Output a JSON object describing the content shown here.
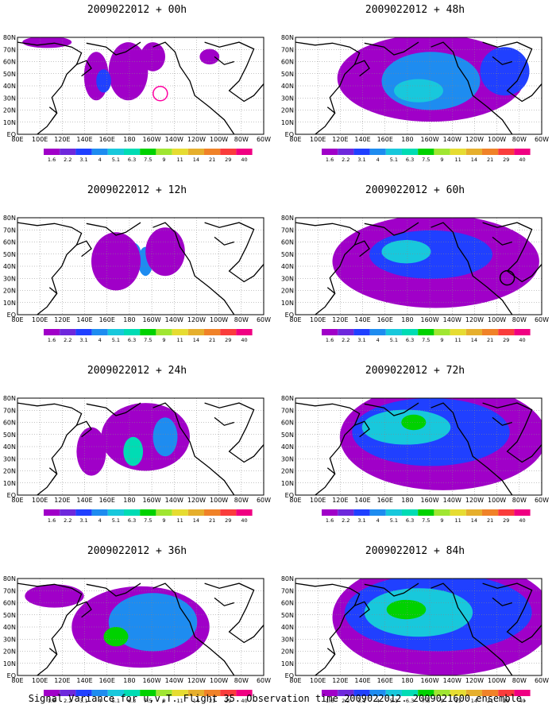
{
  "panels": [
    {
      "title": "2009022012 + 00h",
      "level": 0,
      "circle": "magenta"
    },
    {
      "title": "2009022012 + 12h",
      "level": 1,
      "circle": ""
    },
    {
      "title": "2009022012 + 24h",
      "level": 2,
      "circle": ""
    },
    {
      "title": "2009022012 + 36h",
      "level": 3,
      "circle": ""
    },
    {
      "title": "2009022012 + 48h",
      "level": 4,
      "circle": ""
    },
    {
      "title": "2009022012 + 60h",
      "level": 5,
      "circle": "black"
    },
    {
      "title": "2009022012 + 72h",
      "level": 6,
      "circle": ""
    },
    {
      "title": "2009022012 + 84h",
      "level": 7,
      "circle": ""
    }
  ],
  "lat_labels": [
    "80N",
    "70N",
    "60N",
    "50N",
    "40N",
    "30N",
    "20N",
    "10N",
    "EQ"
  ],
  "lon_labels": [
    "80E",
    "100E",
    "120E",
    "140E",
    "160E",
    "180",
    "160W",
    "140W",
    "120W",
    "100W",
    "80W",
    "60W"
  ],
  "colorbar": {
    "labels": [
      "1.6",
      "2.2",
      "3.1",
      "4",
      "5.1",
      "6.3",
      "7.5",
      "9",
      "11",
      "14",
      "21",
      "29",
      "40"
    ],
    "colors": [
      "#a000c8",
      "#6e28dc",
      "#2040ff",
      "#1e8cf0",
      "#18c8dc",
      "#00dcb4",
      "#00d200",
      "#a0e632",
      "#e6dc32",
      "#e6af2d",
      "#f08228",
      "#fa3c3c",
      "#f00082"
    ]
  },
  "footer": "Signal Variance for u,v,T. Flight 35. Observation time 2009022012. 2009021600 ensemble."
}
